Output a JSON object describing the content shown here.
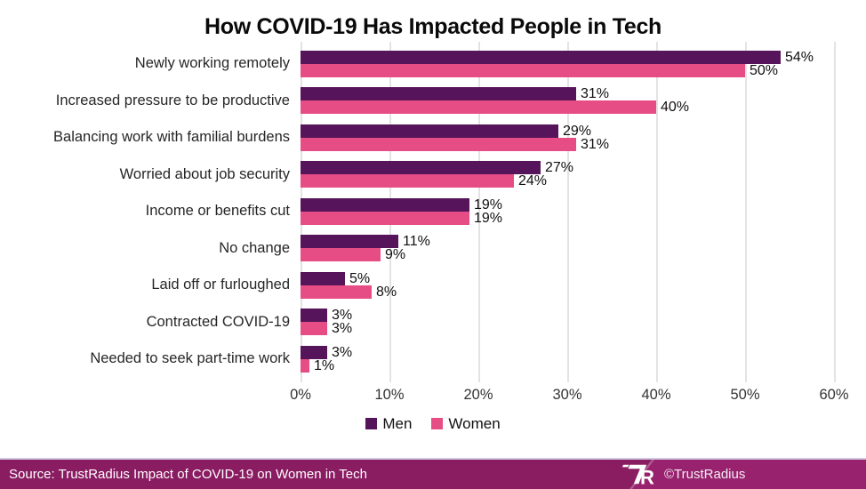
{
  "title": "How COVID-19 Has Impacted People in Tech",
  "chart_data": {
    "type": "bar",
    "orientation": "horizontal",
    "title": "How COVID-19 Has Impacted People in Tech",
    "categories": [
      "Newly working remotely",
      "Increased pressure to be productive",
      "Balancing work with familial burdens",
      "Worried about job security",
      "Income or benefits cut",
      "No change",
      "Laid off or furloughed",
      "Contracted COVID-19",
      "Needed to seek part-time work"
    ],
    "series": [
      {
        "name": "Men",
        "color": "#56145b",
        "values": [
          54,
          31,
          29,
          27,
          19,
          11,
          5,
          3,
          3
        ]
      },
      {
        "name": "Women",
        "color": "#e64d84",
        "values": [
          50,
          40,
          31,
          24,
          19,
          9,
          8,
          3,
          1
        ]
      }
    ],
    "value_suffix": "%",
    "xlim": [
      0,
      60
    ],
    "x_ticks": [
      "0%",
      "10%",
      "20%",
      "30%",
      "40%",
      "50%",
      "60%"
    ],
    "grid": true,
    "legend_position": "bottom"
  },
  "colors": {
    "men": "#56145b",
    "women": "#e64d84",
    "gridline": "#e3e3e3",
    "footer_left": "#8a1c62",
    "footer_right": "#98226d"
  },
  "footer": {
    "source": "Source: TrustRadius Impact of COVID-19 on Women in Tech",
    "credit": "©TrustRadius",
    "logo": "trustradius-tr-logo"
  }
}
